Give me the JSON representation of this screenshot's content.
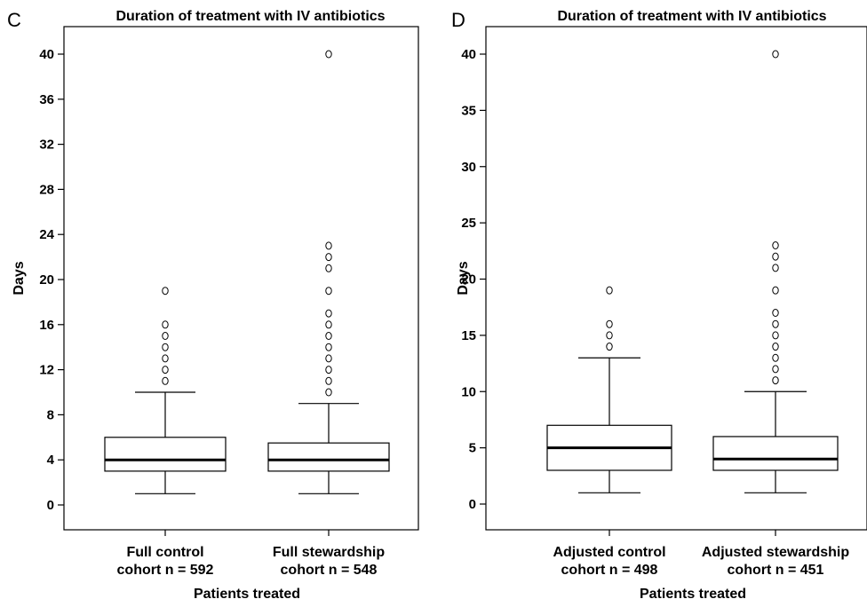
{
  "chart_data": [
    {
      "panel": "C",
      "type": "box",
      "title": "Duration of treatment with IV antibiotics",
      "xlabel": "Patients treated",
      "ylabel": "Days",
      "ylim": [
        -2,
        42
      ],
      "yticks": [
        0,
        4,
        8,
        12,
        16,
        20,
        24,
        28,
        32,
        36,
        40
      ],
      "ytick_labels": [
        "0",
        "4",
        "8",
        "12",
        "16",
        "20",
        "24",
        "28",
        "32",
        "36",
        "40"
      ],
      "categories": [
        [
          "Full control",
          "cohort n = 592"
        ],
        [
          "Full stewardship",
          "cohort n = 548"
        ]
      ],
      "boxes": [
        {
          "min": 1,
          "q1": 3,
          "median": 4,
          "q3": 6,
          "max": 10,
          "outliers": [
            11,
            12,
            13,
            14,
            15,
            16,
            19
          ]
        },
        {
          "min": 1,
          "q1": 3,
          "median": 4,
          "q3": 5.5,
          "max": 9,
          "outliers": [
            10,
            11,
            12,
            13,
            14,
            15,
            16,
            17,
            19,
            21,
            22,
            23,
            40
          ]
        }
      ]
    },
    {
      "panel": "D",
      "type": "box",
      "title": "Duration of treatment with IV antibiotics",
      "xlabel": "Patients treated",
      "ylabel": "Days",
      "ylim": [
        -2,
        42
      ],
      "yticks": [
        0,
        5,
        10,
        15,
        20,
        25,
        30,
        35,
        40
      ],
      "ytick_labels": [
        "0",
        "5",
        "10",
        "15",
        "20",
        "25",
        "30",
        "35",
        "40"
      ],
      "categories": [
        [
          "Adjusted control",
          "cohort n = 498"
        ],
        [
          "Adjusted stewardship",
          "cohort n = 451"
        ]
      ],
      "boxes": [
        {
          "min": 1,
          "q1": 3,
          "median": 5,
          "q3": 7,
          "max": 13,
          "outliers": [
            14,
            15,
            16,
            19
          ]
        },
        {
          "min": 1,
          "q1": 3,
          "median": 4,
          "q3": 6,
          "max": 10,
          "outliers": [
            11,
            12,
            13,
            14,
            15,
            16,
            17,
            19,
            21,
            22,
            23,
            40
          ]
        }
      ]
    }
  ]
}
